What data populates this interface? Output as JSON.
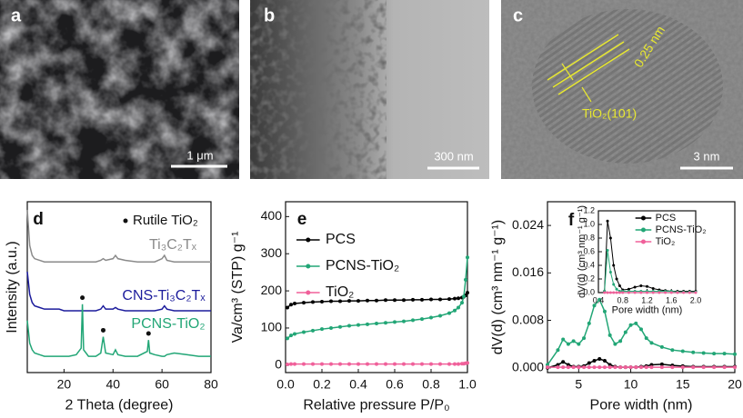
{
  "images": [
    {
      "panel": "a",
      "scale_bar": "1 μm"
    },
    {
      "panel": "b",
      "scale_bar": "300 nm"
    },
    {
      "panel": "c",
      "scale_bar": "3 nm",
      "spacing": "0.25 nm",
      "plane": "TiO₂(101)"
    }
  ],
  "chart_data": [
    {
      "type": "line",
      "panel": "d",
      "xlabel": "2 Theta (degree)",
      "ylabel": "Intensity (a.u.)",
      "xlim": [
        5,
        80
      ],
      "xticks": [
        20,
        40,
        60,
        80
      ],
      "ylim": [
        0,
        1.05
      ],
      "x": [
        5,
        6,
        7,
        8,
        10,
        12,
        15,
        18,
        20,
        22,
        25,
        27,
        27.5,
        28,
        30,
        33,
        35,
        36,
        37,
        40,
        41,
        42,
        45,
        50,
        54,
        54.5,
        55,
        57,
        60,
        61,
        62,
        65,
        70,
        75,
        80
      ],
      "series": [
        {
          "name": "Ti₃C₂Tₓ",
          "color": "#8a8a8a",
          "values": [
            1.0,
            0.78,
            0.72,
            0.7,
            0.69,
            0.68,
            0.68,
            0.68,
            0.68,
            0.68,
            0.68,
            0.68,
            0.68,
            0.68,
            0.68,
            0.68,
            0.69,
            0.7,
            0.69,
            0.7,
            0.72,
            0.7,
            0.69,
            0.68,
            0.68,
            0.68,
            0.68,
            0.68,
            0.7,
            0.72,
            0.69,
            0.68,
            0.68,
            0.68,
            0.68
          ]
        },
        {
          "name": "CNS-Ti₃C₂Tₓ",
          "color": "#1c1c9c",
          "values": [
            0.62,
            0.48,
            0.43,
            0.41,
            0.4,
            0.39,
            0.39,
            0.39,
            0.38,
            0.38,
            0.38,
            0.38,
            0.38,
            0.38,
            0.38,
            0.38,
            0.39,
            0.41,
            0.39,
            0.39,
            0.4,
            0.39,
            0.38,
            0.38,
            0.38,
            0.38,
            0.38,
            0.38,
            0.39,
            0.41,
            0.39,
            0.38,
            0.38,
            0.38,
            0.38
          ]
        },
        {
          "name": "PCNS-TiO₂",
          "color": "#22a676",
          "values": [
            0.32,
            0.18,
            0.14,
            0.12,
            0.11,
            0.1,
            0.1,
            0.1,
            0.1,
            0.1,
            0.11,
            0.15,
            0.42,
            0.14,
            0.1,
            0.1,
            0.12,
            0.22,
            0.12,
            0.11,
            0.14,
            0.11,
            0.1,
            0.1,
            0.13,
            0.2,
            0.12,
            0.11,
            0.1,
            0.1,
            0.11,
            0.12,
            0.11,
            0.1,
            0.1
          ]
        }
      ],
      "peak_markers": {
        "name": "Rutile TiO₂",
        "color": "#111111",
        "x": [
          27.5,
          36,
          54.5
        ],
        "values": [
          0.46,
          0.26,
          0.24
        ]
      }
    },
    {
      "type": "line",
      "panel": "e",
      "xlabel": "Relative pressure P/P₀",
      "ylabel": "Va/cm³ (STP) g⁻¹",
      "xlim": [
        0,
        1
      ],
      "xticks": [
        {
          "value": 0,
          "label": "0.0"
        },
        0.2,
        0.4,
        0.6,
        0.8,
        {
          "value": 1,
          "label": "1.0"
        }
      ],
      "ylim": [
        -20,
        440
      ],
      "yticks": [
        0,
        100,
        200,
        300,
        400
      ],
      "markers": true,
      "legend": "upper left",
      "x": [
        0.01,
        0.03,
        0.05,
        0.1,
        0.15,
        0.2,
        0.25,
        0.3,
        0.35,
        0.4,
        0.45,
        0.5,
        0.55,
        0.6,
        0.65,
        0.7,
        0.75,
        0.8,
        0.85,
        0.9,
        0.93,
        0.95,
        0.97,
        0.98,
        0.99,
        1.0
      ],
      "series": [
        {
          "name": "PCS",
          "color": "#000000",
          "values": [
            155,
            163,
            166,
            168,
            170,
            171,
            172,
            172,
            173,
            173,
            174,
            174,
            175,
            175,
            175,
            176,
            176,
            177,
            177,
            178,
            179,
            180,
            182,
            184,
            188,
            195
          ]
        },
        {
          "name": "PCNS-TiO₂",
          "color": "#22a676",
          "values": [
            72,
            80,
            84,
            89,
            93,
            97,
            100,
            103,
            106,
            108,
            110,
            112,
            114,
            116,
            118,
            121,
            124,
            128,
            133,
            140,
            147,
            155,
            168,
            185,
            230,
            290
          ]
        },
        {
          "name": "TiO₂",
          "color": "#f0609a",
          "values": [
            2,
            3,
            3,
            3,
            3,
            3,
            3,
            3,
            3,
            3,
            3,
            3,
            3,
            3,
            3,
            3,
            3,
            3,
            3,
            3,
            3,
            3,
            4,
            4,
            5,
            6
          ]
        }
      ]
    },
    {
      "type": "line",
      "panel": "f",
      "xlabel": "Pore width (nm)",
      "ylabel": "dV(d) (cm³ nm⁻¹ g⁻¹)",
      "xlim": [
        2,
        20
      ],
      "xticks": [
        5,
        10,
        15,
        20
      ],
      "ylim": [
        -0.0008,
        0.028
      ],
      "yticks": [
        {
          "value": 0,
          "label": "0.000"
        },
        0.008,
        0.016,
        0.024
      ],
      "markers": true,
      "x": [
        2,
        3,
        3.5,
        4,
        4.5,
        5,
        5.5,
        6,
        6.5,
        7,
        7.5,
        8,
        8.5,
        9,
        9.5,
        10,
        10.5,
        11,
        11.5,
        12,
        13,
        14,
        15,
        16,
        17,
        18,
        19,
        20
      ],
      "series": [
        {
          "color": "#000000",
          "values": [
            0,
            0.0005,
            0.001,
            0.0005,
            0.0002,
            0.0002,
            0.0003,
            0.0008,
            0.0012,
            0.0015,
            0.0012,
            0.0005,
            0.0002,
            0.0001,
            0.0001,
            0.0001,
            0.0001,
            0.0002,
            0.0003,
            0.0005,
            0.0006,
            0.0004,
            0.0003,
            0.0002,
            0.0002,
            0.0002,
            0.0002,
            0.0002
          ]
        },
        {
          "color": "#22a676",
          "values": [
            0.0005,
            0.003,
            0.0048,
            0.004,
            0.0045,
            0.004,
            0.005,
            0.0075,
            0.0105,
            0.0115,
            0.0095,
            0.0055,
            0.004,
            0.0045,
            0.006,
            0.0072,
            0.0075,
            0.0065,
            0.005,
            0.0042,
            0.0035,
            0.003,
            0.0028,
            0.0026,
            0.0025,
            0.0024,
            0.0024,
            0.0023
          ]
        },
        {
          "color": "#f0609a",
          "values": [
            0.0001,
            0.0001,
            0.0001,
            0.0001,
            0.0001,
            0.0001,
            0.0001,
            0.0001,
            0.0001,
            0.0001,
            0.0001,
            0.0001,
            0.0001,
            0.0001,
            0.0001,
            0.0001,
            0.0001,
            0.0001,
            0.0001,
            0.0001,
            0.0001,
            0.0001,
            0.0001,
            0.0001,
            0.0001,
            0.0001,
            0.0001,
            0.0001
          ]
        }
      ]
    },
    {
      "type": "line",
      "xlabel": "Pore width (nm)",
      "ylabel": "dV(d) (cm³ nm⁻¹ g⁻¹)",
      "xlim": [
        0.4,
        2.0
      ],
      "xticks": [
        0.4,
        0.8,
        1.2,
        1.6,
        {
          "value": 2,
          "label": "2.0"
        }
      ],
      "ylim": [
        0,
        1.2
      ],
      "yticks": [
        {
          "value": 0,
          "label": "0.0"
        },
        0.2,
        0.4,
        0.6,
        0.8,
        {
          "value": 1,
          "label": "1.0"
        },
        1.2
      ],
      "markers": true,
      "legend": "upper right",
      "x": [
        0.5,
        0.55,
        0.6,
        0.65,
        0.7,
        0.75,
        0.8,
        0.9,
        1.0,
        1.1,
        1.2,
        1.3,
        1.4,
        1.5,
        1.6,
        1.7,
        1.8,
        1.9,
        2.0
      ],
      "series": [
        {
          "name": "PCS",
          "color": "#000000",
          "values": [
            0.02,
            1.05,
            0.8,
            0.4,
            0.2,
            0.1,
            0.04,
            0.05,
            0.08,
            0.1,
            0.09,
            0.06,
            0.04,
            0.03,
            0.02,
            0.02,
            0.02,
            0.02,
            0.02
          ]
        },
        {
          "name": "PCNS-TiO₂",
          "color": "#22a676",
          "values": [
            0.02,
            0.62,
            0.3,
            0.12,
            0.05,
            0.02,
            0.02,
            0.02,
            0.02,
            0.02,
            0.02,
            0.02,
            0.02,
            0.02,
            0.02,
            0.01,
            0.01,
            0.01,
            0.01
          ]
        },
        {
          "name": "TiO₂",
          "color": "#f0609a",
          "values": [
            0,
            0,
            0,
            0,
            0,
            0,
            0,
            0,
            0,
            0,
            0,
            0,
            0,
            0,
            0,
            0,
            0,
            0,
            0
          ]
        }
      ]
    }
  ]
}
